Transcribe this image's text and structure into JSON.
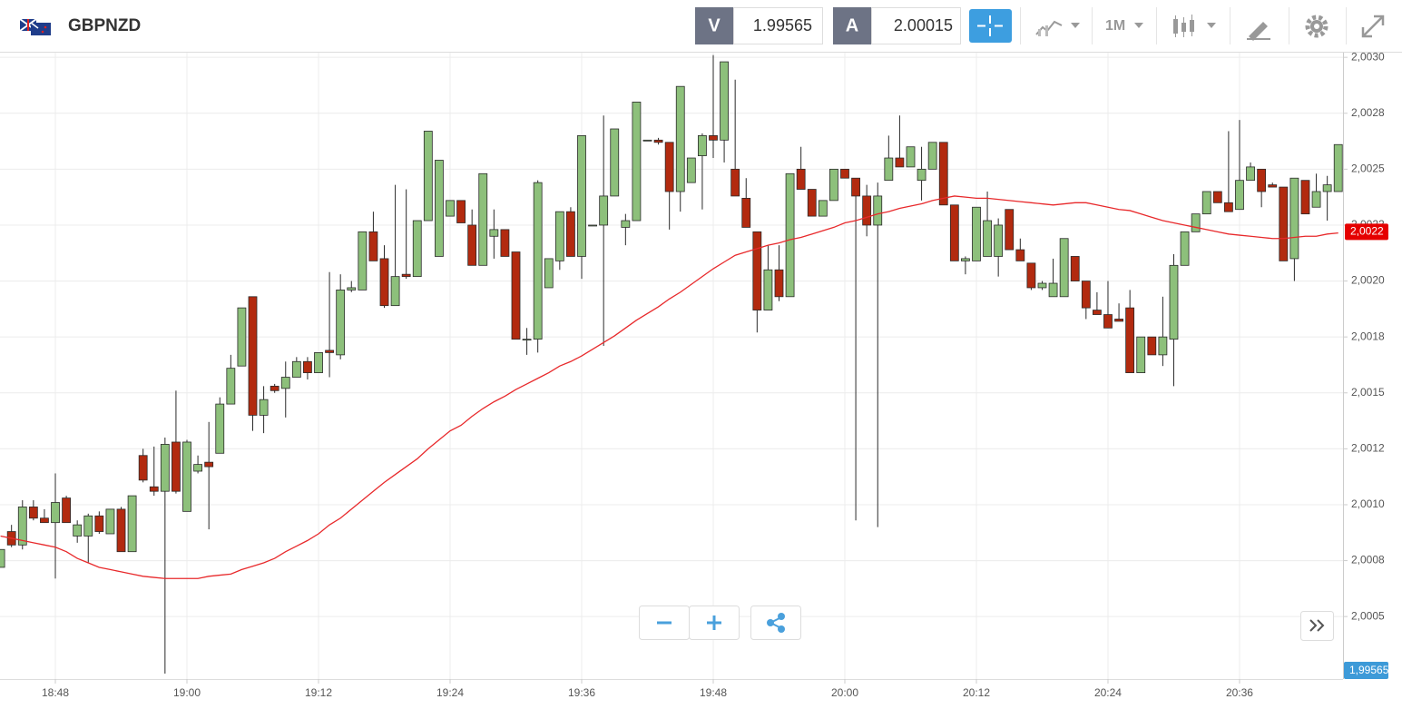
{
  "chart_data": {
    "type": "candlestick",
    "symbol": "GBPNZD",
    "bid_tag": "V",
    "bid": 1.99565,
    "ask_tag": "A",
    "ask": 2.00015,
    "timeframe": "1M",
    "bid_axis_label": "1,99565",
    "last": {
      "value": 2.00222,
      "label": "2,0022"
    },
    "up_color": "#8dc07b",
    "down_color": "#b22a0f",
    "grid": true,
    "ylim": [
      2.000245,
      2.003025
    ],
    "yticks": [
      {
        "value": 2.0005,
        "label": "2,0005"
      },
      {
        "value": 2.00075,
        "label": "2,0008"
      },
      {
        "value": 2.001,
        "label": "2,0010"
      },
      {
        "value": 2.00125,
        "label": "2,0012"
      },
      {
        "value": 2.0015,
        "label": "2,0015"
      },
      {
        "value": 2.00175,
        "label": "2,0018"
      },
      {
        "value": 2.002,
        "label": "2,0020"
      },
      {
        "value": 2.00225,
        "label": "2,0022"
      },
      {
        "value": 2.0025,
        "label": "2,0025"
      },
      {
        "value": 2.00275,
        "label": "2,0028"
      },
      {
        "value": 2.003,
        "label": "2,0030"
      }
    ],
    "categories": [
      null,
      null,
      null,
      null,
      null,
      "18:48",
      null,
      null,
      null,
      null,
      null,
      null,
      null,
      null,
      null,
      null,
      null,
      "19:00",
      null,
      null,
      null,
      null,
      null,
      null,
      null,
      null,
      null,
      null,
      null,
      "19:12",
      null,
      null,
      null,
      null,
      null,
      null,
      null,
      null,
      null,
      null,
      null,
      "19:24",
      null,
      null,
      null,
      null,
      null,
      null,
      null,
      null,
      null,
      null,
      null,
      "19:36",
      null,
      null,
      null,
      null,
      null,
      null,
      null,
      null,
      null,
      null,
      null,
      "19:48",
      null,
      null,
      null,
      null,
      null,
      null,
      null,
      null,
      null,
      null,
      null,
      "20:00",
      null,
      null,
      null,
      null,
      null,
      null,
      null,
      null,
      null,
      null,
      null,
      "20:12",
      null,
      null,
      null,
      null,
      null,
      null,
      null,
      null,
      null,
      null,
      null,
      "20:24",
      null,
      null,
      null,
      null,
      null,
      null,
      null,
      null,
      null,
      null,
      null,
      "20:36",
      null,
      null,
      null,
      null,
      null,
      null,
      null,
      null,
      null
    ],
    "open": [
      2.00072,
      2.00088,
      2.00082,
      2.00099,
      2.00094,
      2.00092,
      2.00103,
      2.00086,
      2.00086,
      2.00095,
      2.00087,
      2.00098,
      2.00079,
      2.00122,
      2.00108,
      2.00106,
      2.00128,
      2.00097,
      2.00115,
      2.00119,
      2.00123,
      2.00145,
      2.00162,
      2.00193,
      2.0014,
      2.00153,
      2.00152,
      2.00157,
      2.00164,
      2.00159,
      2.00169,
      2.00167,
      2.00196,
      2.00196,
      2.00222,
      2.0021,
      2.00189,
      2.00203,
      2.00202,
      2.00227,
      2.00211,
      2.00229,
      2.00236,
      2.00225,
      2.00207,
      2.0022,
      2.00223,
      2.00213,
      2.00174,
      2.00174,
      2.00197,
      2.00209,
      2.00231,
      2.00211,
      2.00225,
      2.00225,
      2.00238,
      2.00224,
      2.00227,
      2.00263,
      2.00263,
      2.00262,
      2.0024,
      2.00244,
      2.00256,
      2.00265,
      2.00263,
      2.0025,
      2.00237,
      2.00222,
      2.00187,
      2.00205,
      2.00193,
      2.0025,
      2.00241,
      2.00229,
      2.00236,
      2.0025,
      2.00246,
      2.00238,
      2.00225,
      2.00245,
      2.00255,
      2.00251,
      2.00245,
      2.0025,
      2.00262,
      2.00234,
      2.00209,
      2.00209,
      2.00211,
      2.00211,
      2.00232,
      2.00214,
      2.00208,
      2.00197,
      2.00193,
      2.00193,
      2.00211,
      2.002,
      2.00187,
      2.00185,
      2.00183,
      2.00188,
      2.00159,
      2.00175,
      2.00167,
      2.00174,
      2.00207,
      2.00222,
      2.0023,
      2.0024,
      2.00235,
      2.00232,
      2.00245,
      2.0025,
      2.00243,
      2.00242,
      2.0021,
      2.00245,
      2.00233,
      2.0024,
      2.0024
    ],
    "high": [
      2.0008,
      2.00091,
      2.00102,
      2.00102,
      2.00098,
      2.00114,
      2.00104,
      2.00093,
      2.00096,
      2.00097,
      2.00098,
      2.00099,
      2.00104,
      2.00125,
      2.00126,
      2.0013,
      2.00151,
      2.00129,
      2.00122,
      2.00137,
      2.00148,
      2.00167,
      2.00188,
      2.00193,
      2.00153,
      2.00154,
      2.00164,
      2.00166,
      2.00166,
      2.00168,
      2.00204,
      2.00203,
      2.002,
      2.00222,
      2.00231,
      2.00216,
      2.00243,
      2.00241,
      2.00227,
      2.00267,
      2.00254,
      2.00236,
      2.00236,
      2.00232,
      2.00248,
      2.00232,
      2.00223,
      2.00213,
      2.00179,
      2.00245,
      2.0021,
      2.00231,
      2.00233,
      2.00265,
      2.00225,
      2.00274,
      2.00268,
      2.0023,
      2.0028,
      2.00263,
      2.00264,
      2.00262,
      2.00287,
      2.00255,
      2.00266,
      2.00301,
      2.00298,
      2.0029,
      2.00246,
      2.00222,
      2.00216,
      2.00216,
      2.00248,
      2.0026,
      2.00241,
      2.00236,
      2.0025,
      2.0025,
      2.00246,
      2.00243,
      2.00244,
      2.00265,
      2.00274,
      2.0026,
      2.0026,
      2.00262,
      2.00262,
      2.00234,
      2.00211,
      2.00233,
      2.0024,
      2.00228,
      2.00232,
      2.00219,
      2.00208,
      2.002,
      2.0021,
      2.00219,
      2.00211,
      2.002,
      2.00195,
      2.002,
      2.0019,
      2.00196,
      2.00175,
      2.00175,
      2.00193,
      2.00212,
      2.00222,
      2.0023,
      2.0024,
      2.0024,
      2.00267,
      2.00272,
      2.00253,
      2.0025,
      2.00244,
      2.00242,
      2.00246,
      2.00245,
      2.00248,
      2.00247,
      2.00261
    ],
    "low": [
      2.00072,
      2.00081,
      2.0008,
      2.00093,
      2.00092,
      2.00067,
      2.00092,
      2.00083,
      2.00074,
      2.00087,
      2.00087,
      2.00079,
      2.00079,
      2.0011,
      2.00104,
      2.000245,
      2.00105,
      2.00097,
      2.00114,
      2.00089,
      2.00123,
      2.00145,
      2.00162,
      2.00133,
      2.00132,
      2.0015,
      2.00139,
      2.00157,
      2.00156,
      2.00159,
      2.00157,
      2.00165,
      2.00195,
      2.00196,
      2.00209,
      2.00188,
      2.00189,
      2.00201,
      2.00202,
      2.00227,
      2.00211,
      2.00229,
      2.00226,
      2.00207,
      2.00207,
      2.0021,
      2.00211,
      2.00174,
      2.00167,
      2.00168,
      2.00197,
      2.00205,
      2.00211,
      2.00201,
      2.00225,
      2.00171,
      2.00238,
      2.00216,
      2.00227,
      2.00263,
      2.00261,
      2.00223,
      2.00231,
      2.00244,
      2.00232,
      2.00255,
      2.00253,
      2.00238,
      2.00224,
      2.00177,
      2.00187,
      2.00191,
      2.00193,
      2.00241,
      2.00229,
      2.00229,
      2.00236,
      2.00246,
      2.00093,
      2.0022,
      2.0009,
      2.00245,
      2.00251,
      2.00251,
      2.00236,
      2.0025,
      2.00234,
      2.00209,
      2.00203,
      2.00209,
      2.00211,
      2.00202,
      2.00214,
      2.00209,
      2.00196,
      2.00196,
      2.00193,
      2.00193,
      2.002,
      2.00183,
      2.00185,
      2.00179,
      2.00182,
      2.00159,
      2.00159,
      2.00167,
      2.00162,
      2.00153,
      2.00207,
      2.00222,
      2.0023,
      2.00235,
      2.00231,
      2.00232,
      2.00245,
      2.00233,
      2.00242,
      2.00209,
      2.002,
      2.0023,
      2.00233,
      2.00227,
      2.0024
    ],
    "close": [
      2.0008,
      2.00082,
      2.00099,
      2.00094,
      2.00092,
      2.00101,
      2.00092,
      2.00091,
      2.00095,
      2.00088,
      2.00098,
      2.00079,
      2.00104,
      2.00111,
      2.00106,
      2.00127,
      2.00106,
      2.00128,
      2.00118,
      2.00117,
      2.00145,
      2.00161,
      2.00188,
      2.0014,
      2.00147,
      2.00151,
      2.00157,
      2.00164,
      2.00159,
      2.00168,
      2.00168,
      2.00196,
      2.00197,
      2.00222,
      2.00209,
      2.00189,
      2.00202,
      2.00202,
      2.00227,
      2.00267,
      2.00254,
      2.00236,
      2.00226,
      2.00207,
      2.00248,
      2.00223,
      2.00211,
      2.00174,
      2.00174,
      2.00244,
      2.0021,
      2.00231,
      2.00211,
      2.00265,
      2.00225,
      2.00238,
      2.00268,
      2.00227,
      2.0028,
      2.00263,
      2.00262,
      2.0024,
      2.00287,
      2.00255,
      2.00265,
      2.00263,
      2.00298,
      2.00238,
      2.00224,
      2.00187,
      2.00205,
      2.00193,
      2.00248,
      2.00241,
      2.00229,
      2.00236,
      2.0025,
      2.00246,
      2.00238,
      2.00225,
      2.00238,
      2.00255,
      2.00251,
      2.0026,
      2.0025,
      2.00262,
      2.00234,
      2.00209,
      2.0021,
      2.00233,
      2.00227,
      2.00225,
      2.00214,
      2.00209,
      2.00197,
      2.00199,
      2.00199,
      2.00219,
      2.002,
      2.00188,
      2.00185,
      2.00179,
      2.00182,
      2.00159,
      2.00175,
      2.00167,
      2.00175,
      2.00207,
      2.00222,
      2.0023,
      2.0024,
      2.00235,
      2.00231,
      2.00245,
      2.00251,
      2.0024,
      2.00242,
      2.00209,
      2.00246,
      2.0023,
      2.0024,
      2.00243,
      2.00261
    ],
    "moving_average": {
      "color": "#e8292b",
      "values": [
        2.00086,
        2.00085,
        2.00084,
        2.00083,
        2.00082,
        2.00081,
        2.00079,
        2.00076,
        2.00074,
        2.00072,
        2.00071,
        2.0007,
        2.00069,
        2.00068,
        2.000675,
        2.00067,
        2.00067,
        2.00067,
        2.00067,
        2.00068,
        2.000685,
        2.00069,
        2.00071,
        2.000725,
        2.00074,
        2.00076,
        2.00079,
        2.000815,
        2.00084,
        2.00087,
        2.00091,
        2.00094,
        2.00098,
        2.00102,
        2.00106,
        2.0011,
        2.001135,
        2.00117,
        2.001205,
        2.00125,
        2.00129,
        2.00133,
        2.001355,
        2.001395,
        2.00143,
        2.00146,
        2.001485,
        2.001515,
        2.00154,
        2.001565,
        2.00159,
        2.00162,
        2.00164,
        2.001665,
        2.001695,
        2.001725,
        2.001755,
        2.00179,
        2.001825,
        2.001855,
        2.001885,
        2.00192,
        2.00195,
        2.001985,
        2.00202,
        2.002055,
        2.002085,
        2.002115,
        2.00213,
        2.002145,
        2.00216,
        2.00217,
        2.002185,
        2.002195,
        2.00221,
        2.002225,
        2.00224,
        2.00226,
        2.00227,
        2.002285,
        2.0023,
        2.00231,
        2.002325,
        2.002335,
        2.002345,
        2.00236,
        2.00237,
        2.00238,
        2.002375,
        2.00237,
        2.00237,
        2.002365,
        2.00236,
        2.002355,
        2.00235,
        2.002345,
        2.00234,
        2.002345,
        2.00235,
        2.00235,
        2.00234,
        2.00233,
        2.00232,
        2.002315,
        2.0023,
        2.002285,
        2.00227,
        2.00226,
        2.00225,
        2.00224,
        2.00223,
        2.00222,
        2.00221,
        2.002205,
        2.0022,
        2.002195,
        2.00219,
        2.00219,
        2.002195,
        2.0022,
        2.0022,
        2.00221,
        2.002215
      ]
    }
  }
}
